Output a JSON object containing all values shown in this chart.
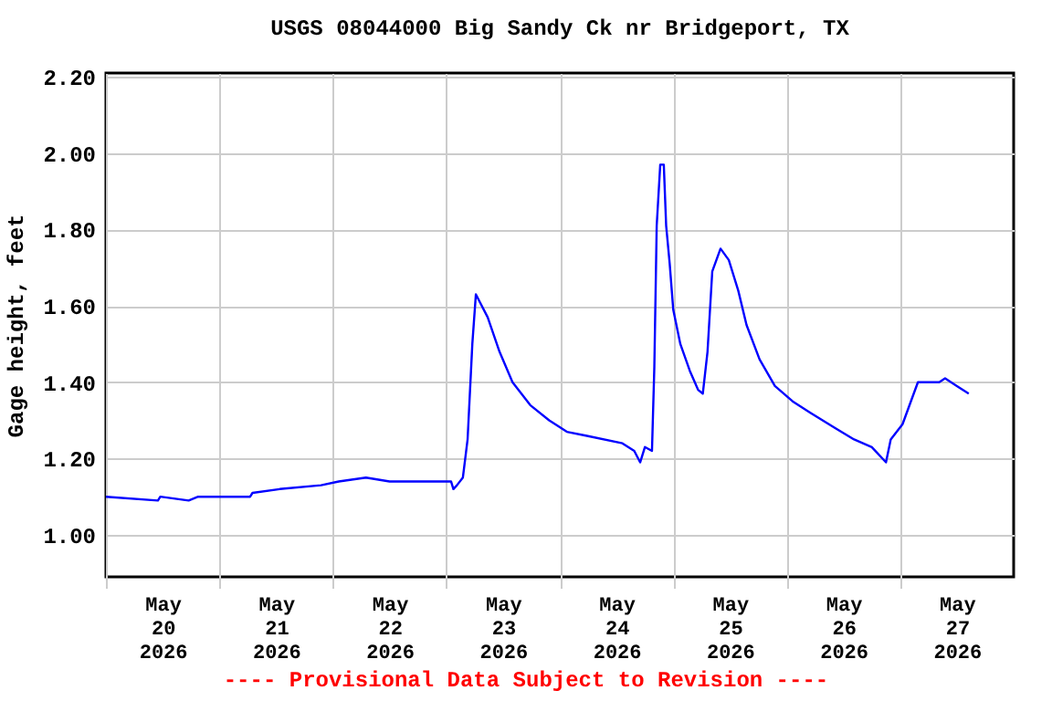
{
  "chart_data": {
    "type": "line",
    "title": "USGS 08044000 Big Sandy Ck nr Bridgeport, TX",
    "ylabel": "Gage height, feet",
    "annotations": [
      "---- Provisional Data Subject to Revision ----"
    ],
    "grid": true,
    "xlim": [
      "2026-05-20T00:00",
      "2026-05-28T00:00"
    ],
    "xticks": [
      {
        "value": "2026-05-20T00:00",
        "label": null
      },
      {
        "value": "2026-05-20T12:00",
        "label": "May 20 2026"
      },
      {
        "value": "2026-05-21T00:00",
        "label": null
      },
      {
        "value": "2026-05-21T12:00",
        "label": "May 21 2026"
      },
      {
        "value": "2026-05-22T00:00",
        "label": null
      },
      {
        "value": "2026-05-22T12:00",
        "label": "May 22 2026"
      },
      {
        "value": "2026-05-23T00:00",
        "label": null
      },
      {
        "value": "2026-05-23T12:00",
        "label": "May 23 2026"
      },
      {
        "value": "2026-05-24T00:00",
        "label": null
      },
      {
        "value": "2026-05-24T12:00",
        "label": "May 24 2026"
      },
      {
        "value": "2026-05-25T00:00",
        "label": null
      },
      {
        "value": "2026-05-25T12:00",
        "label": "May 25 2026"
      },
      {
        "value": "2026-05-26T00:00",
        "label": null
      },
      {
        "value": "2026-05-26T12:00",
        "label": "May 26 2026"
      },
      {
        "value": "2026-05-27T00:00",
        "label": null
      },
      {
        "value": "2026-05-27T12:00",
        "label": "May 27 2026"
      }
    ],
    "ylim": [
      0.89,
      2.21
    ],
    "yticks": [
      {
        "value": 1.0,
        "label": "1.00"
      },
      {
        "value": 1.2,
        "label": "1.20"
      },
      {
        "value": 1.4,
        "label": "1.40"
      },
      {
        "value": 1.6,
        "label": "1.60"
      },
      {
        "value": 1.8,
        "label": "1.80"
      },
      {
        "value": 2.0,
        "label": "2.00"
      },
      {
        "value": 2.2,
        "label": "2.20"
      }
    ],
    "x": [
      "2026-05-20T00:00",
      "2026-05-20T11:00",
      "2026-05-20T11:30",
      "2026-05-20T17:30",
      "2026-05-20T19:30",
      "2026-05-21T06:30",
      "2026-05-21T07:00",
      "2026-05-21T12:45",
      "2026-05-21T21:30",
      "2026-05-22T01:15",
      "2026-05-22T07:00",
      "2026-05-22T12:00",
      "2026-05-23T01:00",
      "2026-05-23T01:30",
      "2026-05-23T02:15",
      "2026-05-23T03:30",
      "2026-05-23T04:30",
      "2026-05-23T05:30",
      "2026-05-23T06:15",
      "2026-05-23T08:45",
      "2026-05-23T11:15",
      "2026-05-23T14:00",
      "2026-05-23T17:45",
      "2026-05-23T21:45",
      "2026-05-24T01:30",
      "2026-05-24T05:30",
      "2026-05-24T13:15",
      "2026-05-24T15:45",
      "2026-05-24T17:00",
      "2026-05-24T18:00",
      "2026-05-24T19:30",
      "2026-05-24T20:00",
      "2026-05-24T20:30",
      "2026-05-24T21:15",
      "2026-05-24T22:00",
      "2026-05-24T22:30",
      "2026-05-24T23:15",
      "2026-05-25T00:00",
      "2026-05-25T01:30",
      "2026-05-25T03:30",
      "2026-05-25T05:15",
      "2026-05-25T06:15",
      "2026-05-25T07:15",
      "2026-05-25T08:15",
      "2026-05-25T10:00",
      "2026-05-25T11:45",
      "2026-05-25T13:45",
      "2026-05-25T15:30",
      "2026-05-25T18:15",
      "2026-05-25T21:30",
      "2026-05-26T01:15",
      "2026-05-26T05:00",
      "2026-05-26T10:15",
      "2026-05-26T14:15",
      "2026-05-26T18:00",
      "2026-05-26T21:00",
      "2026-05-26T22:00",
      "2026-05-27T00:30",
      "2026-05-27T03:45",
      "2026-05-27T08:15",
      "2026-05-27T09:30",
      "2026-05-27T12:00",
      "2026-05-27T14:30"
    ],
    "series": [
      {
        "color": "#0000ff",
        "values": [
          1.1,
          1.09,
          1.1,
          1.09,
          1.1,
          1.1,
          1.11,
          1.12,
          1.13,
          1.14,
          1.15,
          1.14,
          1.14,
          1.12,
          1.13,
          1.15,
          1.25,
          1.5,
          1.63,
          1.57,
          1.48,
          1.4,
          1.34,
          1.3,
          1.27,
          1.26,
          1.24,
          1.22,
          1.19,
          1.23,
          1.22,
          1.44,
          1.81,
          1.97,
          1.97,
          1.81,
          1.71,
          1.59,
          1.5,
          1.43,
          1.38,
          1.37,
          1.48,
          1.69,
          1.75,
          1.72,
          1.64,
          1.55,
          1.46,
          1.39,
          1.35,
          1.32,
          1.28,
          1.25,
          1.23,
          1.19,
          1.25,
          1.29,
          1.4,
          1.4,
          1.41,
          1.39,
          1.37
        ]
      }
    ]
  }
}
